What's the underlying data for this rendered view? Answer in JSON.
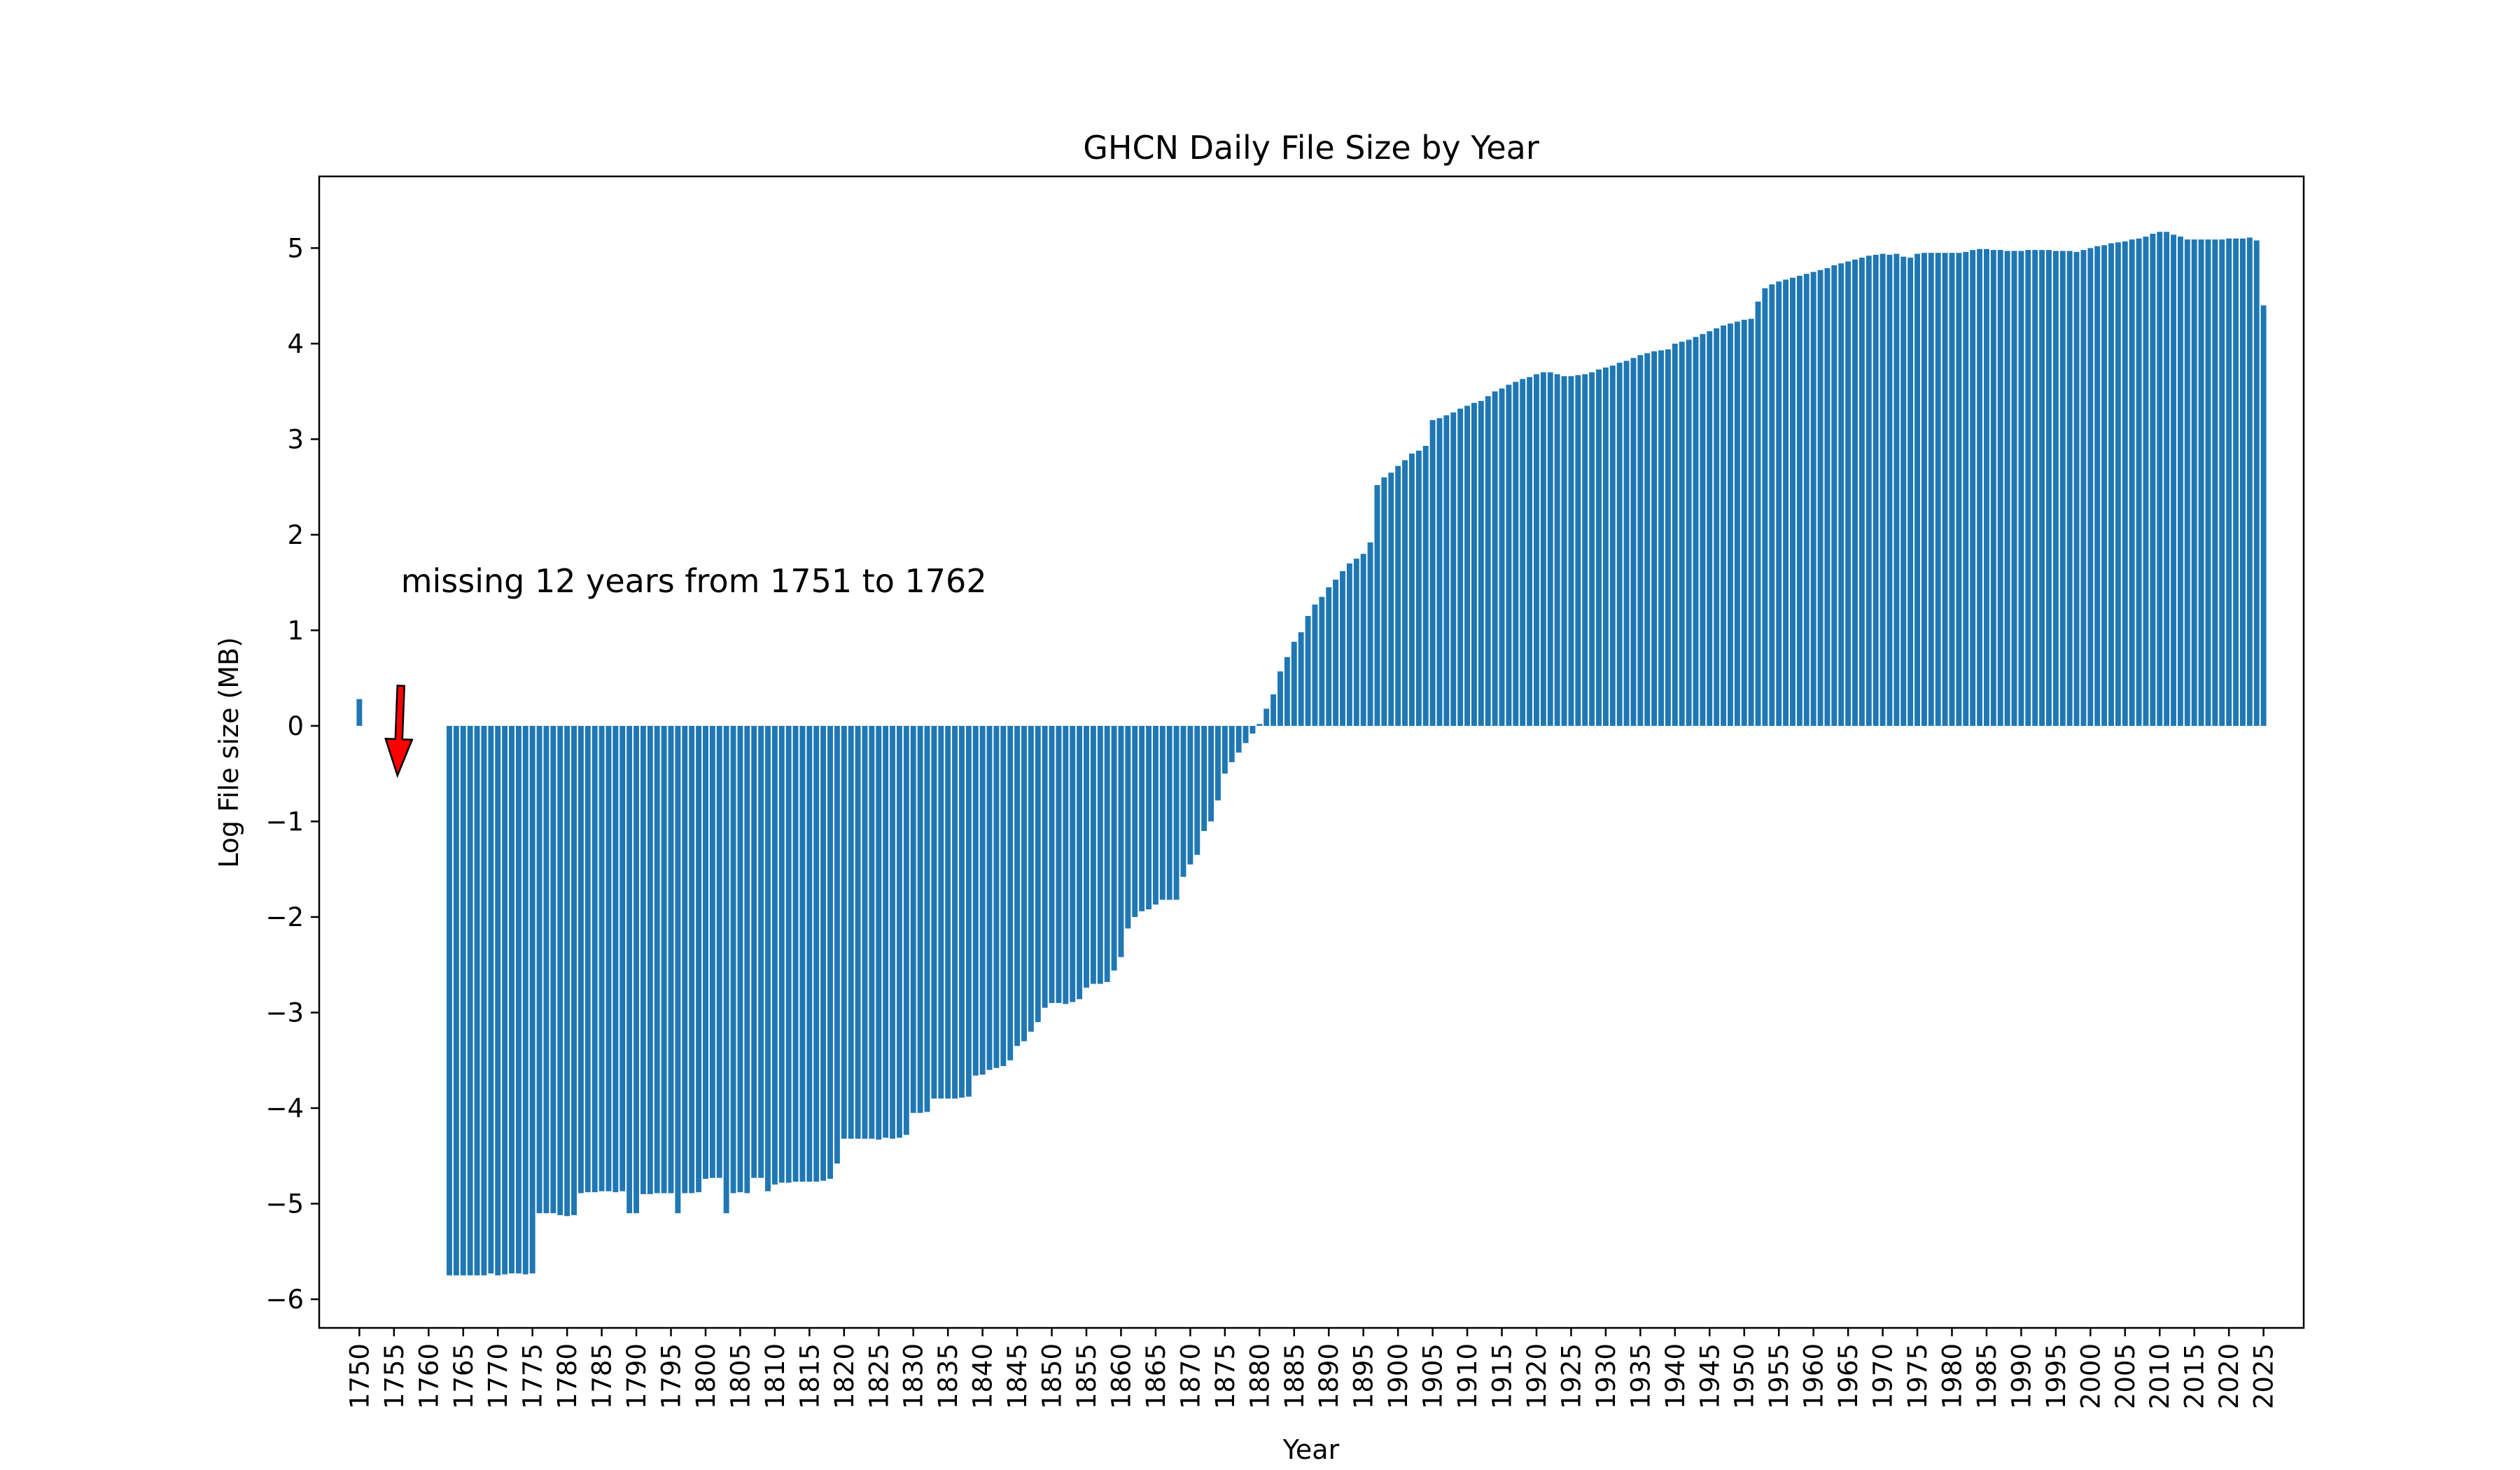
{
  "chart_data": {
    "type": "bar",
    "title": "GHCN Daily File Size by Year",
    "xlabel": "Year",
    "ylabel": "Log File size (MB)",
    "xlim": [
      1744.2,
      2030.8
    ],
    "ylim": [
      -6.3,
      5.75
    ],
    "x_ticks": [
      1750,
      1755,
      1760,
      1765,
      1770,
      1775,
      1780,
      1785,
      1790,
      1795,
      1800,
      1805,
      1810,
      1815,
      1820,
      1825,
      1830,
      1835,
      1840,
      1845,
      1850,
      1855,
      1860,
      1865,
      1870,
      1875,
      1880,
      1885,
      1890,
      1895,
      1900,
      1905,
      1910,
      1915,
      1920,
      1925,
      1930,
      1935,
      1940,
      1945,
      1950,
      1955,
      1960,
      1965,
      1970,
      1975,
      1980,
      1985,
      1990,
      1995,
      2000,
      2005,
      2010,
      2015,
      2020,
      2025
    ],
    "y_ticks": [
      5,
      4,
      3,
      2,
      1,
      0,
      -1,
      -2,
      -3,
      -4,
      -5,
      -6
    ],
    "y_tick_labels": [
      "5",
      "4",
      "3",
      "2",
      "1",
      "0",
      "−1",
      "−2",
      "−3",
      "−4",
      "−5",
      "−6"
    ],
    "grid": false,
    "bar_color": "#1f77b4",
    "years": [
      1750,
      1763,
      1764,
      1765,
      1766,
      1767,
      1768,
      1769,
      1770,
      1771,
      1772,
      1773,
      1774,
      1775,
      1776,
      1777,
      1778,
      1779,
      1780,
      1781,
      1782,
      1783,
      1784,
      1785,
      1786,
      1787,
      1788,
      1789,
      1790,
      1791,
      1792,
      1793,
      1794,
      1795,
      1796,
      1797,
      1798,
      1799,
      1800,
      1801,
      1802,
      1803,
      1804,
      1805,
      1806,
      1807,
      1808,
      1809,
      1810,
      1811,
      1812,
      1813,
      1814,
      1815,
      1816,
      1817,
      1818,
      1819,
      1820,
      1821,
      1822,
      1823,
      1824,
      1825,
      1826,
      1827,
      1828,
      1829,
      1830,
      1831,
      1832,
      1833,
      1834,
      1835,
      1836,
      1837,
      1838,
      1839,
      1840,
      1841,
      1842,
      1843,
      1844,
      1845,
      1846,
      1847,
      1848,
      1849,
      1850,
      1851,
      1852,
      1853,
      1854,
      1855,
      1856,
      1857,
      1858,
      1859,
      1860,
      1861,
      1862,
      1863,
      1864,
      1865,
      1866,
      1867,
      1868,
      1869,
      1870,
      1871,
      1872,
      1873,
      1874,
      1875,
      1876,
      1877,
      1878,
      1879,
      1880,
      1881,
      1882,
      1883,
      1884,
      1885,
      1886,
      1887,
      1888,
      1889,
      1890,
      1891,
      1892,
      1893,
      1894,
      1895,
      1896,
      1897,
      1898,
      1899,
      1900,
      1901,
      1902,
      1903,
      1904,
      1905,
      1906,
      1907,
      1908,
      1909,
      1910,
      1911,
      1912,
      1913,
      1914,
      1915,
      1916,
      1917,
      1918,
      1919,
      1920,
      1921,
      1922,
      1923,
      1924,
      1925,
      1926,
      1927,
      1928,
      1929,
      1930,
      1931,
      1932,
      1933,
      1934,
      1935,
      1936,
      1937,
      1938,
      1939,
      1940,
      1941,
      1942,
      1943,
      1944,
      1945,
      1946,
      1947,
      1948,
      1949,
      1950,
      1951,
      1952,
      1953,
      1954,
      1955,
      1956,
      1957,
      1958,
      1959,
      1960,
      1961,
      1962,
      1963,
      1964,
      1965,
      1966,
      1967,
      1968,
      1969,
      1970,
      1971,
      1972,
      1973,
      1974,
      1975,
      1976,
      1977,
      1978,
      1979,
      1980,
      1981,
      1982,
      1983,
      1984,
      1985,
      1986,
      1987,
      1988,
      1989,
      1990,
      1991,
      1992,
      1993,
      1994,
      1995,
      1996,
      1997,
      1998,
      1999,
      2000,
      2001,
      2002,
      2003,
      2004,
      2005,
      2006,
      2007,
      2008,
      2009,
      2010,
      2011,
      2012,
      2013,
      2014,
      2015,
      2016,
      2017,
      2018,
      2019,
      2020,
      2021,
      2022,
      2023,
      2024,
      2025
    ],
    "values": [
      0.28,
      -5.75,
      -5.75,
      -5.75,
      -5.75,
      -5.75,
      -5.75,
      -5.73,
      -5.75,
      -5.74,
      -5.73,
      -5.73,
      -5.74,
      -5.73,
      -5.1,
      -5.1,
      -5.1,
      -5.12,
      -5.13,
      -5.12,
      -4.89,
      -4.88,
      -4.88,
      -4.87,
      -4.87,
      -4.88,
      -4.87,
      -5.1,
      -5.1,
      -4.9,
      -4.9,
      -4.89,
      -4.89,
      -4.89,
      -5.1,
      -4.89,
      -4.89,
      -4.88,
      -4.74,
      -4.73,
      -4.73,
      -5.1,
      -4.89,
      -4.88,
      -4.89,
      -4.73,
      -4.73,
      -4.87,
      -4.8,
      -4.78,
      -4.78,
      -4.77,
      -4.77,
      -4.77,
      -4.77,
      -4.76,
      -4.74,
      -4.58,
      -4.32,
      -4.32,
      -4.32,
      -4.32,
      -4.32,
      -4.33,
      -4.31,
      -4.32,
      -4.31,
      -4.28,
      -4.05,
      -4.05,
      -4.04,
      -3.9,
      -3.9,
      -3.9,
      -3.9,
      -3.89,
      -3.88,
      -3.66,
      -3.65,
      -3.6,
      -3.58,
      -3.56,
      -3.5,
      -3.35,
      -3.3,
      -3.2,
      -3.1,
      -2.95,
      -2.9,
      -2.9,
      -2.91,
      -2.89,
      -2.86,
      -2.74,
      -2.7,
      -2.7,
      -2.68,
      -2.56,
      -2.42,
      -2.12,
      -2.0,
      -1.94,
      -1.92,
      -1.87,
      -1.82,
      -1.82,
      -1.82,
      -1.58,
      -1.45,
      -1.35,
      -1.1,
      -1.0,
      -0.78,
      -0.5,
      -0.38,
      -0.28,
      -0.18,
      -0.08,
      0.02,
      0.18,
      0.33,
      0.57,
      0.72,
      0.88,
      0.98,
      1.15,
      1.27,
      1.35,
      1.45,
      1.53,
      1.62,
      1.7,
      1.75,
      1.8,
      1.92,
      2.52,
      2.6,
      2.65,
      2.72,
      2.78,
      2.85,
      2.88,
      2.93,
      3.2,
      3.22,
      3.25,
      3.28,
      3.32,
      3.35,
      3.38,
      3.4,
      3.45,
      3.5,
      3.53,
      3.57,
      3.6,
      3.63,
      3.65,
      3.68,
      3.7,
      3.7,
      3.68,
      3.66,
      3.66,
      3.67,
      3.68,
      3.7,
      3.73,
      3.75,
      3.77,
      3.8,
      3.82,
      3.85,
      3.88,
      3.9,
      3.92,
      3.93,
      3.94,
      4.0,
      4.02,
      4.04,
      4.07,
      4.1,
      4.13,
      4.16,
      4.19,
      4.21,
      4.23,
      4.25,
      4.26,
      4.44,
      4.58,
      4.62,
      4.65,
      4.67,
      4.69,
      4.71,
      4.73,
      4.75,
      4.77,
      4.79,
      4.82,
      4.84,
      4.86,
      4.88,
      4.9,
      4.92,
      4.93,
      4.94,
      4.93,
      4.94,
      4.91,
      4.9,
      4.94,
      4.95,
      4.95,
      4.95,
      4.95,
      4.95,
      4.95,
      4.96,
      4.98,
      4.99,
      4.99,
      4.98,
      4.98,
      4.97,
      4.97,
      4.97,
      4.98,
      4.98,
      4.98,
      4.98,
      4.97,
      4.97,
      4.97,
      4.96,
      4.98,
      5.0,
      5.02,
      5.03,
      5.05,
      5.06,
      5.07,
      5.09,
      5.1,
      5.12,
      5.15,
      5.17,
      5.17,
      5.14,
      5.12,
      5.09,
      5.09,
      5.09,
      5.09,
      5.09,
      5.09,
      5.1,
      5.1,
      5.1,
      5.11,
      5.08,
      4.4
    ],
    "annotation": {
      "text": "missing 12 years from 1751 to 1762",
      "color": "#ff0000",
      "text_at": [
        1756,
        1.4
      ],
      "arrow_from": [
        1756,
        0.42
      ],
      "arrow_to": [
        1755.5,
        -0.52
      ]
    }
  }
}
